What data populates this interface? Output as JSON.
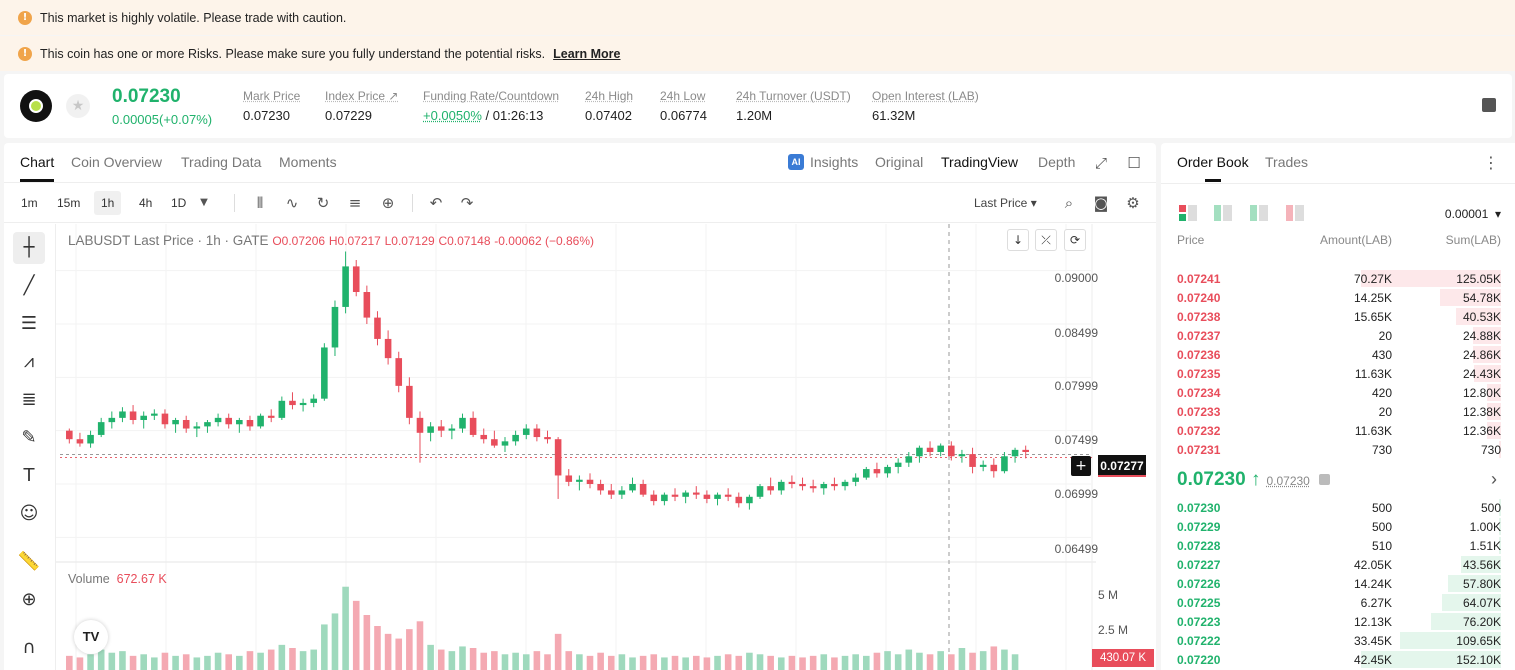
{
  "banners": [
    {
      "text": "This market is highly volatile. Please trade with caution.",
      "link": ""
    },
    {
      "text": "This coin has one or more Risks. Please make sure you fully understand the potential risks.",
      "link": "Learn More"
    }
  ],
  "ticker": {
    "last_price": "0.07230",
    "change": "0.00005(+0.07%)",
    "stats": [
      {
        "label": "Mark Price",
        "value": "0.07230"
      },
      {
        "label": "Index Price ↗",
        "value": "0.07229"
      },
      {
        "label": "Funding Rate/Countdown",
        "value_green": "+0.0050%",
        "value": "/ 01:26:13"
      },
      {
        "label": "24h High",
        "value": "0.07402"
      },
      {
        "label": "24h Low",
        "value": "0.06774"
      },
      {
        "label": "24h Turnover (USDT)",
        "value": "1.20M"
      },
      {
        "label": "Open Interest (LAB)",
        "value": "61.32M"
      }
    ]
  },
  "chart_tabs": [
    "Chart",
    "Coin Overview",
    "Trading Data",
    "Moments"
  ],
  "view_tabs": [
    "Insights",
    "Original",
    "TradingView",
    "Depth"
  ],
  "timeframes": [
    "1m",
    "15m",
    "1h",
    "4h",
    "1D"
  ],
  "price_source": "Last Price",
  "legend": {
    "symbol": "LABUSDT Last Price · 1h · GATE",
    "o": "O0.07206",
    "h": "H0.07217",
    "l": "L0.07129",
    "c": "C0.07148",
    "change": "-0.00062 (−0.86%)"
  },
  "price_axis": [
    "0.09000",
    "0.08499",
    "0.07999",
    "0.07499",
    "0.06999",
    "0.06499"
  ],
  "current_price_tag": "0.07277",
  "volume": {
    "label": "Volume",
    "value": "672.67 K",
    "axis": [
      "5 M",
      "2.5 M"
    ],
    "tag": "430.07 K"
  },
  "orderbook": {
    "tabs": [
      "Order Book",
      "Trades"
    ],
    "precision": "0.00001",
    "headers": [
      "Price",
      "Amount(LAB)",
      "Sum(LAB)"
    ],
    "asks": [
      [
        "0.07241",
        "70.27K",
        "125.05K"
      ],
      [
        "0.07240",
        "14.25K",
        "54.78K"
      ],
      [
        "0.07238",
        "15.65K",
        "40.53K"
      ],
      [
        "0.07237",
        "20",
        "24.88K"
      ],
      [
        "0.07236",
        "430",
        "24.86K"
      ],
      [
        "0.07235",
        "11.63K",
        "24.43K"
      ],
      [
        "0.07234",
        "420",
        "12.80K"
      ],
      [
        "0.07233",
        "20",
        "12.38K"
      ],
      [
        "0.07232",
        "11.63K",
        "12.36K"
      ],
      [
        "0.07231",
        "730",
        "730"
      ]
    ],
    "mid_price": "0.07230 ↑",
    "mid_mark": "0.07230",
    "bids": [
      [
        "0.07230",
        "500",
        "500"
      ],
      [
        "0.07229",
        "500",
        "1.00K"
      ],
      [
        "0.07228",
        "510",
        "1.51K"
      ],
      [
        "0.07227",
        "42.05K",
        "43.56K"
      ],
      [
        "0.07226",
        "14.24K",
        "57.80K"
      ],
      [
        "0.07225",
        "6.27K",
        "64.07K"
      ],
      [
        "0.07223",
        "12.13K",
        "76.20K"
      ],
      [
        "0.07222",
        "33.45K",
        "109.65K"
      ],
      [
        "0.07220",
        "42.45K",
        "152.10K"
      ]
    ]
  },
  "colors": {
    "up": "#20b26c",
    "down": "#e84d5b",
    "warn": "#f0a44a"
  },
  "chart_data": {
    "type": "candlestick",
    "ylim": [
      0.0625,
      0.0925
    ],
    "candles": [
      [
        0.075,
        0.0752,
        0.0738,
        0.0742
      ],
      [
        0.0742,
        0.0748,
        0.0735,
        0.0738
      ],
      [
        0.0738,
        0.075,
        0.0734,
        0.0746
      ],
      [
        0.0746,
        0.0762,
        0.0744,
        0.0758
      ],
      [
        0.0758,
        0.0768,
        0.0752,
        0.0762
      ],
      [
        0.0762,
        0.0772,
        0.0758,
        0.0768
      ],
      [
        0.0768,
        0.0774,
        0.0756,
        0.076
      ],
      [
        0.076,
        0.0768,
        0.0752,
        0.0764
      ],
      [
        0.0764,
        0.077,
        0.076,
        0.0766
      ],
      [
        0.0766,
        0.077,
        0.0752,
        0.0756
      ],
      [
        0.0756,
        0.0762,
        0.0748,
        0.076
      ],
      [
        0.076,
        0.0764,
        0.0748,
        0.0752
      ],
      [
        0.0752,
        0.0758,
        0.0744,
        0.0754
      ],
      [
        0.0754,
        0.076,
        0.0748,
        0.0758
      ],
      [
        0.0758,
        0.0766,
        0.0754,
        0.0762
      ],
      [
        0.0762,
        0.0766,
        0.0752,
        0.0756
      ],
      [
        0.0756,
        0.0762,
        0.0748,
        0.076
      ],
      [
        0.076,
        0.0764,
        0.075,
        0.0754
      ],
      [
        0.0754,
        0.0766,
        0.0752,
        0.0764
      ],
      [
        0.0764,
        0.077,
        0.0758,
        0.0762
      ],
      [
        0.0762,
        0.0782,
        0.076,
        0.0778
      ],
      [
        0.0778,
        0.0786,
        0.077,
        0.0774
      ],
      [
        0.0774,
        0.078,
        0.0768,
        0.0776
      ],
      [
        0.0776,
        0.0784,
        0.0772,
        0.078
      ],
      [
        0.078,
        0.0832,
        0.0778,
        0.0828
      ],
      [
        0.0828,
        0.0872,
        0.082,
        0.0866
      ],
      [
        0.0866,
        0.0918,
        0.086,
        0.0904
      ],
      [
        0.0904,
        0.091,
        0.0876,
        0.088
      ],
      [
        0.088,
        0.0886,
        0.085,
        0.0856
      ],
      [
        0.0856,
        0.0862,
        0.083,
        0.0836
      ],
      [
        0.0836,
        0.0844,
        0.0812,
        0.0818
      ],
      [
        0.0818,
        0.0824,
        0.0786,
        0.0792
      ],
      [
        0.0792,
        0.08,
        0.0756,
        0.0762
      ],
      [
        0.0762,
        0.0768,
        0.072,
        0.0748
      ],
      [
        0.0748,
        0.0758,
        0.074,
        0.0754
      ],
      [
        0.0754,
        0.076,
        0.0744,
        0.075
      ],
      [
        0.075,
        0.0756,
        0.0742,
        0.0752
      ],
      [
        0.0752,
        0.0766,
        0.0748,
        0.0762
      ],
      [
        0.0762,
        0.0768,
        0.0744,
        0.0746
      ],
      [
        0.0746,
        0.0752,
        0.0738,
        0.0742
      ],
      [
        0.0742,
        0.075,
        0.0734,
        0.0736
      ],
      [
        0.0736,
        0.0744,
        0.073,
        0.074
      ],
      [
        0.074,
        0.075,
        0.0736,
        0.0746
      ],
      [
        0.0746,
        0.0756,
        0.0742,
        0.0752
      ],
      [
        0.0752,
        0.0756,
        0.074,
        0.0744
      ],
      [
        0.0744,
        0.075,
        0.0738,
        0.0742
      ],
      [
        0.0742,
        0.0744,
        0.0686,
        0.0708
      ],
      [
        0.0708,
        0.0714,
        0.0698,
        0.0702
      ],
      [
        0.0702,
        0.0708,
        0.0694,
        0.0704
      ],
      [
        0.0704,
        0.071,
        0.0696,
        0.07
      ],
      [
        0.07,
        0.0704,
        0.069,
        0.0694
      ],
      [
        0.0694,
        0.07,
        0.0686,
        0.069
      ],
      [
        0.069,
        0.0698,
        0.0686,
        0.0694
      ],
      [
        0.0694,
        0.0706,
        0.0692,
        0.07
      ],
      [
        0.07,
        0.0704,
        0.0688,
        0.069
      ],
      [
        0.069,
        0.0694,
        0.068,
        0.0684
      ],
      [
        0.0684,
        0.0692,
        0.068,
        0.069
      ],
      [
        0.069,
        0.0696,
        0.0684,
        0.0688
      ],
      [
        0.0688,
        0.0694,
        0.0682,
        0.0692
      ],
      [
        0.0692,
        0.0698,
        0.0686,
        0.069
      ],
      [
        0.069,
        0.0694,
        0.0682,
        0.0686
      ],
      [
        0.0686,
        0.0692,
        0.068,
        0.069
      ],
      [
        0.069,
        0.0696,
        0.0684,
        0.0688
      ],
      [
        0.0688,
        0.0692,
        0.0678,
        0.0682
      ],
      [
        0.0682,
        0.069,
        0.0676,
        0.0688
      ],
      [
        0.0688,
        0.07,
        0.0686,
        0.0698
      ],
      [
        0.0698,
        0.0706,
        0.069,
        0.0694
      ],
      [
        0.0694,
        0.0704,
        0.069,
        0.0702
      ],
      [
        0.0702,
        0.0708,
        0.0696,
        0.07
      ],
      [
        0.07,
        0.0706,
        0.0694,
        0.0698
      ],
      [
        0.0698,
        0.0704,
        0.0692,
        0.0696
      ],
      [
        0.0696,
        0.0702,
        0.069,
        0.07
      ],
      [
        0.07,
        0.0706,
        0.0694,
        0.0698
      ],
      [
        0.0698,
        0.0704,
        0.0694,
        0.0702
      ],
      [
        0.0702,
        0.071,
        0.0698,
        0.0706
      ],
      [
        0.0706,
        0.0716,
        0.0704,
        0.0714
      ],
      [
        0.0714,
        0.072,
        0.0706,
        0.071
      ],
      [
        0.071,
        0.0718,
        0.0706,
        0.0716
      ],
      [
        0.0716,
        0.0724,
        0.071,
        0.072
      ],
      [
        0.072,
        0.073,
        0.0716,
        0.0726
      ],
      [
        0.0726,
        0.0736,
        0.072,
        0.0734
      ],
      [
        0.0734,
        0.074,
        0.0726,
        0.073
      ],
      [
        0.073,
        0.0738,
        0.0726,
        0.0736
      ],
      [
        0.0736,
        0.074,
        0.0722,
        0.0726
      ],
      [
        0.0726,
        0.0732,
        0.072,
        0.0728
      ],
      [
        0.0728,
        0.0734,
        0.071,
        0.0716
      ],
      [
        0.0716,
        0.0722,
        0.0712,
        0.0718
      ],
      [
        0.0718,
        0.0724,
        0.0706,
        0.0712
      ],
      [
        0.0712,
        0.073,
        0.071,
        0.0726
      ],
      [
        0.0726,
        0.0734,
        0.072,
        0.0732
      ],
      [
        0.0732,
        0.0736,
        0.0724,
        0.073
      ]
    ],
    "volume": [
      0.9,
      0.8,
      1.0,
      1.3,
      1.1,
      1.2,
      0.9,
      1.0,
      0.8,
      1.1,
      0.9,
      1.0,
      0.8,
      0.9,
      1.1,
      1.0,
      0.9,
      1.2,
      1.1,
      1.3,
      1.6,
      1.4,
      1.2,
      1.3,
      2.9,
      3.6,
      5.3,
      4.4,
      3.5,
      2.8,
      2.3,
      2.0,
      2.6,
      3.1,
      1.6,
      1.3,
      1.2,
      1.5,
      1.4,
      1.1,
      1.2,
      1.0,
      1.1,
      1.0,
      1.2,
      1.0,
      2.3,
      1.2,
      1.0,
      0.9,
      1.1,
      0.9,
      1.0,
      0.8,
      0.9,
      1.0,
      0.8,
      0.9,
      0.8,
      0.9,
      0.8,
      0.9,
      1.0,
      0.9,
      1.1,
      1.0,
      0.9,
      0.8,
      0.9,
      0.8,
      0.9,
      1.0,
      0.8,
      0.9,
      1.0,
      0.9,
      1.1,
      1.2,
      1.0,
      1.3,
      1.1,
      1.0,
      1.2,
      1.0,
      1.4,
      1.1,
      1.2,
      1.5,
      1.3,
      1.0
    ]
  }
}
